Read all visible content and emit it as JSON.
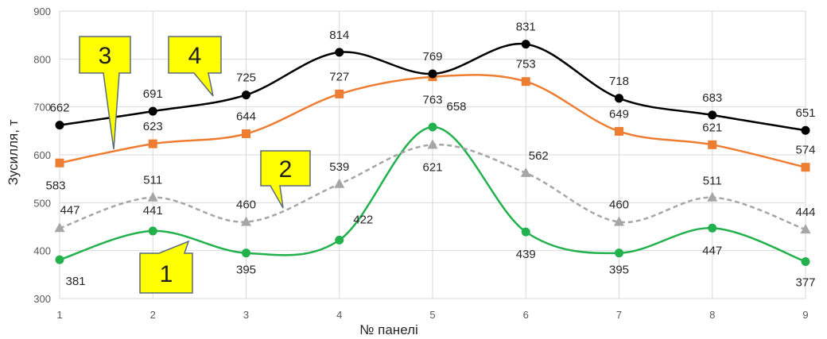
{
  "chart_data": {
    "type": "line",
    "xlabel": "№ панелі",
    "ylabel": "Зусилля, т",
    "ylim": [
      300,
      900
    ],
    "y_ticks": [
      300,
      400,
      500,
      600,
      700,
      800,
      900
    ],
    "grid": "vertical and horizontal",
    "legend": "none",
    "categories": [
      "1",
      "2",
      "3",
      "4",
      "5",
      "6",
      "7",
      "8",
      "9"
    ],
    "series": [
      {
        "callout": "1",
        "marker": "circle",
        "color": "#22b14c",
        "dashed": false,
        "values": [
          381,
          441,
          395,
          422,
          658,
          439,
          395,
          447,
          377
        ]
      },
      {
        "callout": "2",
        "marker": "triangle",
        "color": "#a6a6a6",
        "dashed": true,
        "values": [
          447,
          511,
          460,
          539,
          621,
          562,
          460,
          511,
          444
        ]
      },
      {
        "callout": "3",
        "marker": "square",
        "color": "#ed7d31",
        "dashed": false,
        "values": [
          583,
          623,
          644,
          727,
          763,
          753,
          649,
          621,
          574
        ]
      },
      {
        "callout": "4",
        "marker": "circle",
        "color": "#000000",
        "dashed": false,
        "values": [
          662,
          691,
          725,
          814,
          769,
          831,
          718,
          683,
          651
        ]
      }
    ]
  }
}
